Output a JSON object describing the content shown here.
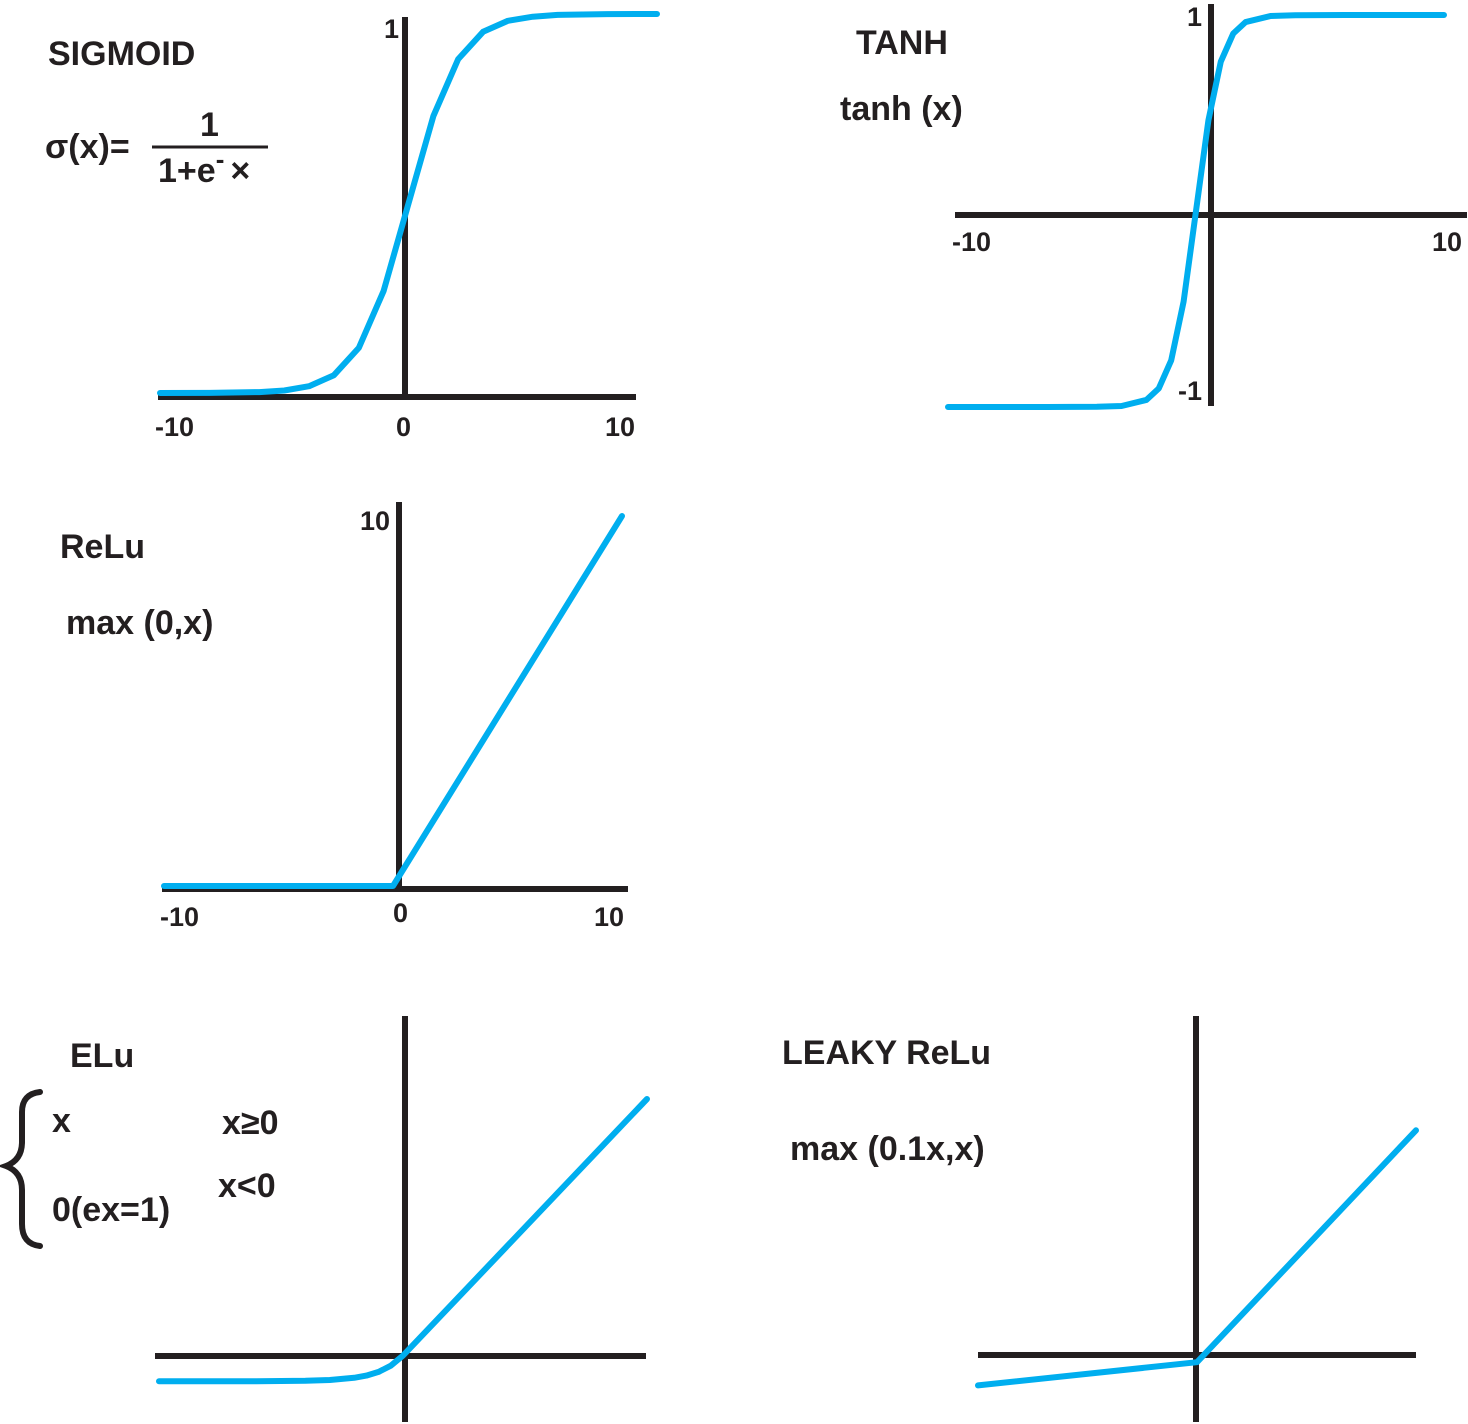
{
  "colors": {
    "curve": "#00aeef",
    "axis": "#231f20",
    "text": "#231f20",
    "background": "#ffffff"
  },
  "chart_data": [
    {
      "type": "line",
      "id": "sigmoid",
      "title": "SIGMOID",
      "formula": {
        "lhs": "σ(x)=",
        "numerator": "1",
        "denominator_base": "1+e",
        "denominator_sup": "-",
        "denominator_tail": "×"
      },
      "xlim": [
        -10,
        10
      ],
      "ylim": [
        0,
        1
      ],
      "x_ticks": [
        "-10",
        "0",
        "10"
      ],
      "y_ticks": [
        "1"
      ],
      "series": [
        {
          "x": [
            -10,
            -8,
            -6,
            -5,
            -4,
            -3,
            -2,
            -1,
            0,
            1,
            2,
            3,
            4,
            5,
            6,
            8,
            10
          ],
          "y": [
            5e-05,
            0.0003,
            0.0025,
            0.0067,
            0.018,
            0.047,
            0.119,
            0.269,
            0.5,
            0.731,
            0.881,
            0.953,
            0.982,
            0.993,
            0.9975,
            0.9997,
            0.99995
          ]
        }
      ]
    },
    {
      "type": "line",
      "id": "tanh",
      "title": "TANH",
      "formula_text": "tanh (x)",
      "xlim": [
        -10,
        10
      ],
      "ylim": [
        -1,
        1
      ],
      "x_ticks": [
        "-10",
        "10"
      ],
      "y_ticks": [
        "1",
        "-1"
      ],
      "series": [
        {
          "x": [
            -10,
            -6,
            -4,
            -3,
            -2,
            -1.5,
            -1,
            -0.5,
            0,
            0.5,
            1,
            1.5,
            2,
            3,
            4,
            6,
            10
          ],
          "y": [
            -1,
            -1,
            -0.999,
            -0.995,
            -0.964,
            -0.905,
            -0.762,
            -0.462,
            0,
            0.462,
            0.762,
            0.905,
            0.964,
            0.995,
            0.999,
            1,
            1
          ]
        }
      ]
    },
    {
      "type": "line",
      "id": "relu",
      "title": "ReLu",
      "formula_text": "max (0,x)",
      "xlim": [
        -10,
        10
      ],
      "ylim": [
        0,
        10
      ],
      "x_ticks": [
        "-10",
        "0",
        "10"
      ],
      "y_ticks": [
        "10"
      ],
      "series": [
        {
          "x": [
            -10,
            0,
            10
          ],
          "y": [
            0,
            0,
            10
          ]
        }
      ]
    },
    {
      "type": "line",
      "id": "elu",
      "title": "ELu",
      "cases": [
        {
          "expr": "x",
          "cond": "x≥0"
        },
        {
          "expr": "0(ex=1)",
          "cond": "x<0"
        }
      ],
      "xlim": [
        -10,
        10
      ],
      "ylim": [
        -1.3,
        13
      ],
      "x_ticks": [],
      "y_ticks": [],
      "series": [
        {
          "x": [
            -10,
            -8,
            -6,
            -4,
            -3,
            -2,
            -1.5,
            -1,
            -0.5,
            0,
            10
          ],
          "y": [
            -1,
            -1,
            -0.998,
            -0.98,
            -0.95,
            -0.865,
            -0.777,
            -0.632,
            -0.393,
            0,
            10
          ]
        }
      ]
    },
    {
      "type": "line",
      "id": "leaky_relu",
      "title": "LEAKY ReLu",
      "formula_text": "max (0.1x,x)",
      "xlim": [
        -10,
        10
      ],
      "ylim": [
        -1.5,
        14.5
      ],
      "x_ticks": [],
      "y_ticks": [],
      "series": [
        {
          "x": [
            -10,
            0,
            10
          ],
          "y": [
            -1,
            0,
            10
          ]
        }
      ]
    }
  ]
}
